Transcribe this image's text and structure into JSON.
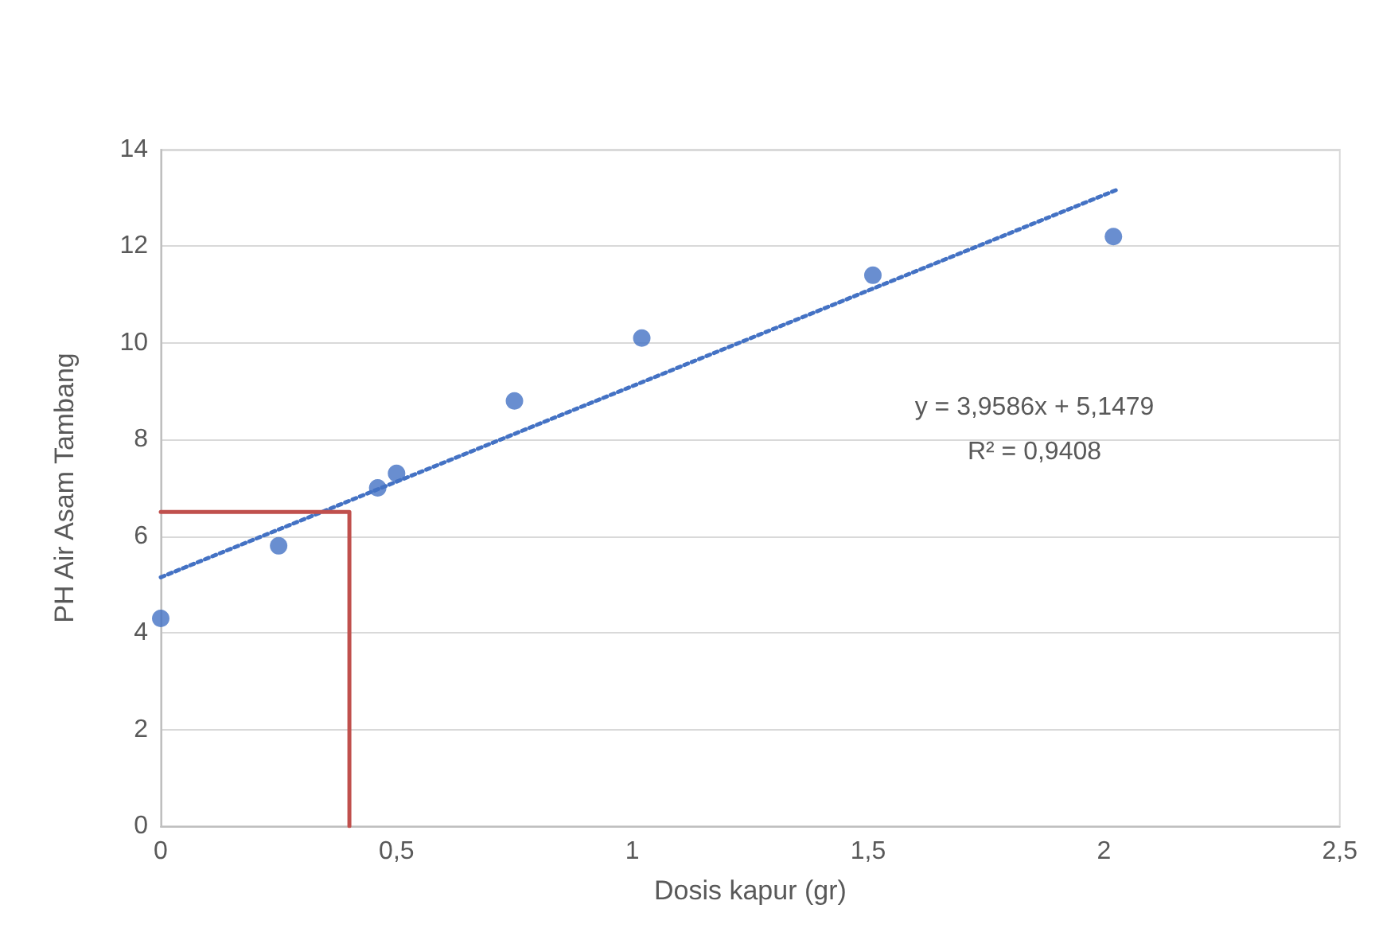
{
  "chart_data": {
    "type": "scatter",
    "xlabel": "Dosis kapur (gr)",
    "ylabel": "PH Air Asam Tambang",
    "series": [
      {
        "color": "#4472c4",
        "x": [
          0,
          0.25,
          0.46,
          0.5,
          0.75,
          1.02,
          1.51,
          2.02
        ],
        "values": [
          4.3,
          5.8,
          7.0,
          7.3,
          8.8,
          10.1,
          11.4,
          12.2
        ],
        "marker": "circle"
      },
      {
        "type": "line",
        "color": "#4472c4",
        "x": [
          0,
          2.03
        ],
        "values": [
          5.15,
          13.18
        ],
        "line_style": "dotted",
        "marker": "none"
      },
      {
        "type": "line",
        "color": "#c0504d",
        "x": [
          0,
          0.4,
          0.4
        ],
        "values": [
          6.5,
          6.5,
          0
        ],
        "line_style": "solid",
        "marker": "none"
      }
    ],
    "xlim": [
      0,
      2.5
    ],
    "xticks": [
      0,
      {
        "value": 0.5,
        "label": "0,5"
      },
      1,
      {
        "value": 1.5,
        "label": "1,5"
      },
      2,
      {
        "value": 2.5,
        "label": "2,5"
      }
    ],
    "ylim": [
      0,
      14
    ],
    "yticks": [
      0,
      2,
      4,
      6,
      8,
      10,
      12,
      14
    ],
    "annotations": [
      "y = 3,9586x + 5,1479",
      "R² = 0,9408"
    ],
    "grid": "y"
  }
}
